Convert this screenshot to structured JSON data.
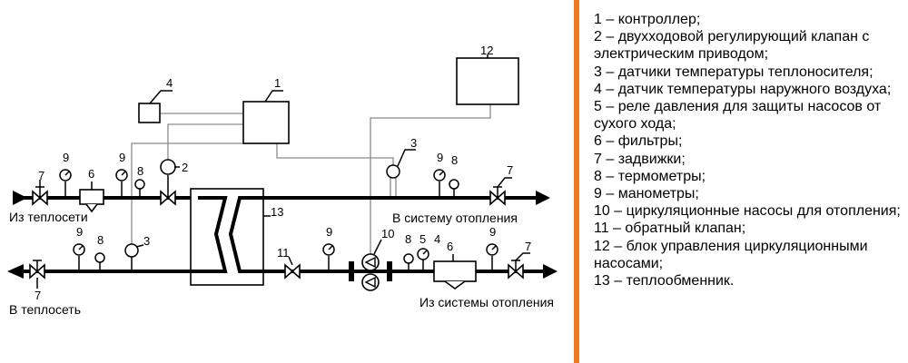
{
  "diagram": {
    "callouts": {
      "c1": "1",
      "c2": "2",
      "c3a": "3",
      "c3b": "3",
      "c4": "4",
      "c5": "5",
      "c6a": "6",
      "c6b": "6",
      "c7a": "7",
      "c7b": "7",
      "c7c": "7",
      "c7d": "7",
      "c8a": "8",
      "c8b": "8",
      "c8c": "8",
      "c8d": "8",
      "c9a": "9",
      "c9b": "9",
      "c9c": "9",
      "c9d": "9",
      "c9e": "9",
      "c9f": "9",
      "c10": "10",
      "c11": "11",
      "c12": "12",
      "c13": "13",
      "c4b": "4"
    },
    "captions": {
      "from_network": "Из теплосети",
      "to_heating": "В систему отопления",
      "to_network": "В теплосеть",
      "from_heating": "Из системы отопления"
    }
  },
  "legend": {
    "items": [
      "1 – контроллер;",
      "2 – двухходовой регулирующий клапан с электрическим приводом;",
      "3 – датчики температуры теплоносителя;",
      "4 – датчик температуры наружного воздуха;",
      "5 – реле давления для защиты насосов от сухого хода;",
      "6 – фильтры;",
      "7 – задвижки;",
      "8 – термометры;",
      "9 – манометры;",
      "10 – циркуляционные насосы для отопления;",
      "11 – обратный клапан;",
      "12 – блок управления циркуляционными насосами;",
      "13 – теплообменник."
    ]
  }
}
